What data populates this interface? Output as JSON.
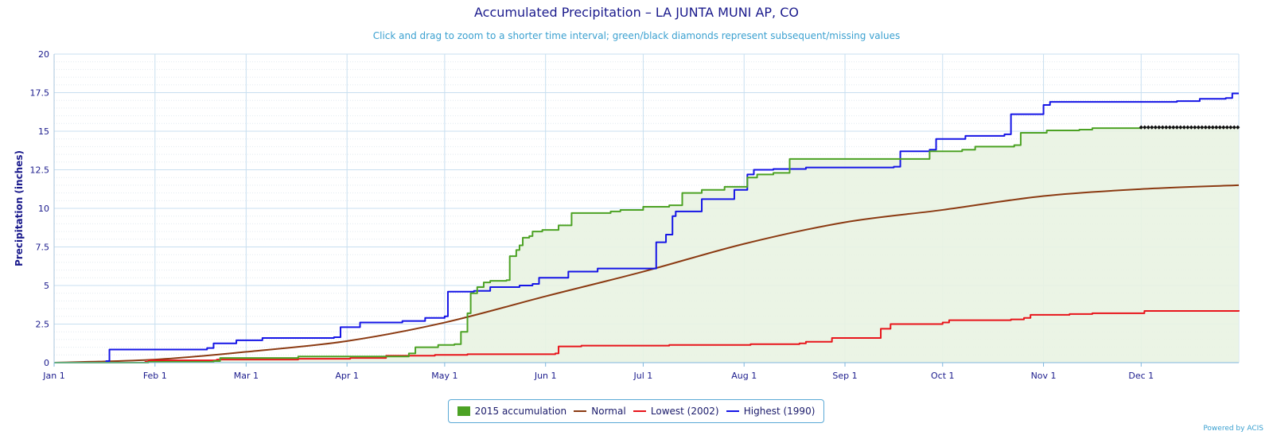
{
  "colors": {
    "accumulation": "#4ca224",
    "accumulation_fill": "#e9f3e2",
    "normal": "#8b3a12",
    "lowest": "#e8141b",
    "highest": "#1515e6",
    "missing_marker": "#111111",
    "grid_major": "#c8dff0",
    "grid_minor": "#e1e9ef",
    "axis_text": "#1a1a8c"
  },
  "credits": "Powered by ACIS",
  "chart_data": {
    "type": "line",
    "title": "Accumulated Precipitation – LA JUNTA MUNI AP, CO",
    "subtitle": "Click and drag to zoom to a shorter time interval; green/black diamonds represent subsequent/missing values",
    "ylabel": "Precipitation (inches)",
    "xlabel": "",
    "ylim": [
      0,
      20
    ],
    "xlim": [
      1,
      365
    ],
    "x_unit": "day of year",
    "y_ticks": [
      "0",
      "2.5",
      "5",
      "7.5",
      "10",
      "12.5",
      "15",
      "17.5",
      "20"
    ],
    "x_ticks": [
      {
        "label": "Jan 1",
        "day": 1
      },
      {
        "label": "Feb 1",
        "day": 32
      },
      {
        "label": "Mar 1",
        "day": 60
      },
      {
        "label": "Apr 1",
        "day": 91
      },
      {
        "label": "May 1",
        "day": 121
      },
      {
        "label": "Jun 1",
        "day": 152
      },
      {
        "label": "Jul 1",
        "day": 182
      },
      {
        "label": "Aug 1",
        "day": 213
      },
      {
        "label": "Sep 1",
        "day": 244
      },
      {
        "label": "Oct 1",
        "day": 274
      },
      {
        "label": "Nov 1",
        "day": 305
      },
      {
        "label": "Dec 1",
        "day": 335
      }
    ],
    "grid": true,
    "legend_position": "bottom-center",
    "series": [
      {
        "key": "accumulation",
        "name": "2015 accumulation",
        "style": "step-area",
        "points": [
          [
            1,
            0
          ],
          [
            30,
            0.05
          ],
          [
            50,
            0.1
          ],
          [
            52,
            0.3
          ],
          [
            75,
            0.3
          ],
          [
            76,
            0.4
          ],
          [
            108,
            0.4
          ],
          [
            110,
            0.6
          ],
          [
            112,
            1.0
          ],
          [
            118,
            1.0
          ],
          [
            119,
            1.15
          ],
          [
            124,
            1.2
          ],
          [
            126,
            2.0
          ],
          [
            128,
            3.2
          ],
          [
            129,
            4.5
          ],
          [
            131,
            4.9
          ],
          [
            133,
            5.2
          ],
          [
            135,
            5.3
          ],
          [
            140,
            5.35
          ],
          [
            141,
            6.9
          ],
          [
            143,
            7.3
          ],
          [
            144,
            7.6
          ],
          [
            145,
            8.1
          ],
          [
            147,
            8.2
          ],
          [
            148,
            8.5
          ],
          [
            151,
            8.6
          ],
          [
            156,
            8.9
          ],
          [
            160,
            9.7
          ],
          [
            172,
            9.8
          ],
          [
            175,
            9.9
          ],
          [
            182,
            10.1
          ],
          [
            190,
            10.2
          ],
          [
            194,
            11.0
          ],
          [
            200,
            11.2
          ],
          [
            207,
            11.4
          ],
          [
            213,
            11.4
          ],
          [
            214,
            12.0
          ],
          [
            217,
            12.2
          ],
          [
            222,
            12.3
          ],
          [
            227,
            13.2
          ],
          [
            265,
            13.2
          ],
          [
            270,
            13.7
          ],
          [
            280,
            13.8
          ],
          [
            284,
            14.0
          ],
          [
            296,
            14.1
          ],
          [
            298,
            14.9
          ],
          [
            306,
            15.05
          ],
          [
            316,
            15.1
          ],
          [
            320,
            15.2
          ],
          [
            330,
            15.2
          ],
          [
            335,
            15.25
          ]
        ]
      },
      {
        "key": "normal",
        "name": "Normal",
        "style": "smooth",
        "points": [
          [
            1,
            0
          ],
          [
            32,
            0.2
          ],
          [
            60,
            0.7
          ],
          [
            91,
            1.4
          ],
          [
            121,
            2.6
          ],
          [
            152,
            4.3
          ],
          [
            182,
            5.9
          ],
          [
            213,
            7.7
          ],
          [
            244,
            9.1
          ],
          [
            274,
            9.9
          ],
          [
            305,
            10.8
          ],
          [
            335,
            11.25
          ],
          [
            365,
            11.5
          ]
        ]
      },
      {
        "key": "lowest",
        "name": "Lowest (2002)",
        "style": "step",
        "points": [
          [
            1,
            0
          ],
          [
            29,
            0.05
          ],
          [
            30,
            0.15
          ],
          [
            51,
            0.2
          ],
          [
            76,
            0.25
          ],
          [
            92,
            0.3
          ],
          [
            102,
            0.3
          ],
          [
            103,
            0.45
          ],
          [
            118,
            0.5
          ],
          [
            128,
            0.55
          ],
          [
            155,
            0.6
          ],
          [
            156,
            1.05
          ],
          [
            163,
            1.1
          ],
          [
            190,
            1.15
          ],
          [
            215,
            1.2
          ],
          [
            230,
            1.25
          ],
          [
            232,
            1.35
          ],
          [
            240,
            1.6
          ],
          [
            252,
            1.6
          ],
          [
            255,
            2.2
          ],
          [
            258,
            2.5
          ],
          [
            274,
            2.6
          ],
          [
            276,
            2.75
          ],
          [
            295,
            2.8
          ],
          [
            299,
            2.9
          ],
          [
            301,
            3.1
          ],
          [
            313,
            3.15
          ],
          [
            320,
            3.2
          ],
          [
            335,
            3.2
          ],
          [
            336,
            3.35
          ],
          [
            365,
            3.4
          ]
        ]
      },
      {
        "key": "highest",
        "name": "Highest (1990)",
        "style": "step",
        "points": [
          [
            1,
            0
          ],
          [
            17,
            0.1
          ],
          [
            18,
            0.85
          ],
          [
            45,
            0.85
          ],
          [
            48,
            0.95
          ],
          [
            50,
            1.25
          ],
          [
            57,
            1.45
          ],
          [
            65,
            1.6
          ],
          [
            87,
            1.65
          ],
          [
            89,
            2.3
          ],
          [
            95,
            2.6
          ],
          [
            108,
            2.7
          ],
          [
            115,
            2.9
          ],
          [
            121,
            3.0
          ],
          [
            122,
            4.6
          ],
          [
            130,
            4.65
          ],
          [
            135,
            4.9
          ],
          [
            144,
            5.0
          ],
          [
            148,
            5.1
          ],
          [
            150,
            5.5
          ],
          [
            159,
            5.9
          ],
          [
            168,
            6.1
          ],
          [
            185,
            6.1
          ],
          [
            186,
            7.8
          ],
          [
            189,
            8.3
          ],
          [
            191,
            9.5
          ],
          [
            192,
            9.8
          ],
          [
            199,
            9.8
          ],
          [
            200,
            10.6
          ],
          [
            207,
            10.6
          ],
          [
            210,
            11.2
          ],
          [
            214,
            12.2
          ],
          [
            216,
            12.5
          ],
          [
            222,
            12.55
          ],
          [
            232,
            12.65
          ],
          [
            259,
            12.7
          ],
          [
            261,
            13.7
          ],
          [
            270,
            13.8
          ],
          [
            272,
            14.5
          ],
          [
            281,
            14.7
          ],
          [
            293,
            14.8
          ],
          [
            295,
            16.1
          ],
          [
            300,
            16.1
          ],
          [
            305,
            16.7
          ],
          [
            307,
            16.9
          ],
          [
            320,
            16.9
          ],
          [
            335,
            16.9
          ],
          [
            346,
            16.95
          ],
          [
            353,
            17.1
          ],
          [
            361,
            17.15
          ],
          [
            363,
            17.45
          ],
          [
            365,
            17.45
          ]
        ]
      }
    ],
    "missing_markers": {
      "from_day": 335,
      "to_day": 365,
      "value": 15.25
    }
  }
}
